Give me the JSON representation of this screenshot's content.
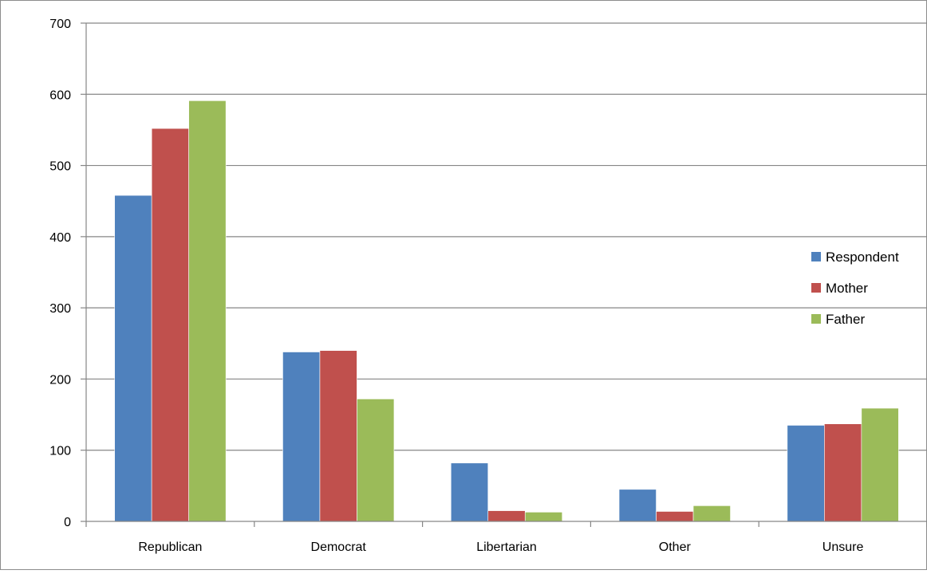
{
  "chart_data": {
    "type": "bar",
    "categories": [
      "Republican",
      "Democrat",
      "Libertarian",
      "Other",
      "Unsure"
    ],
    "series": [
      {
        "name": "Respondent",
        "color": "#4F81BD",
        "values": [
          458,
          238,
          82,
          45,
          135
        ]
      },
      {
        "name": "Mother",
        "color": "#C0504D",
        "values": [
          552,
          240,
          15,
          14,
          137
        ]
      },
      {
        "name": "Father",
        "color": "#9BBB59",
        "values": [
          591,
          172,
          13,
          22,
          159
        ]
      }
    ],
    "ylim": [
      0,
      700
    ],
    "yticks": [
      "0",
      "100",
      "200",
      "300",
      "400",
      "500",
      "600",
      "700"
    ],
    "grid": true,
    "legend_position": "right"
  }
}
